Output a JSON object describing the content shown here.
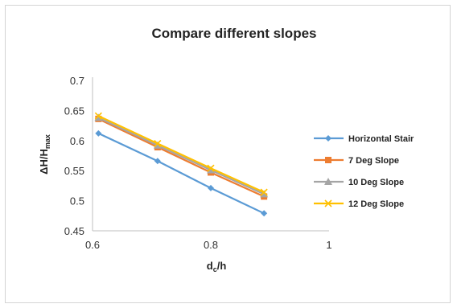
{
  "chart_data": {
    "type": "line",
    "title": "Compare different slopes",
    "xlabel": {
      "main": "d",
      "sub": "c",
      "suffix": "/h"
    },
    "ylabel": {
      "main": "ΔH/H",
      "sub": "max"
    },
    "xlim": [
      0.6,
      1.0
    ],
    "ylim": [
      0.45,
      0.7
    ],
    "xticks": [
      "0.6",
      "0.8",
      "1"
    ],
    "xtick_values": [
      0.6,
      0.8,
      1.0
    ],
    "yticks": [
      "0.45",
      "0.5",
      "0.55",
      "0.6",
      "0.65",
      "0.7"
    ],
    "ytick_values": [
      0.45,
      0.5,
      0.55,
      0.6,
      0.65,
      0.7
    ],
    "grid": false,
    "legend_position": "right",
    "x": [
      0.61,
      0.71,
      0.8,
      0.89
    ],
    "series": [
      {
        "name": "Horizontal Stair",
        "values": [
          0.612,
          0.566,
          0.521,
          0.479
        ],
        "color": "#5b9bd5",
        "marker": "diamond"
      },
      {
        "name": "7 Deg Slope",
        "values": [
          0.636,
          0.589,
          0.547,
          0.507
        ],
        "color": "#ed7d31",
        "marker": "square"
      },
      {
        "name": "10 Deg Slope",
        "values": [
          0.638,
          0.592,
          0.551,
          0.511
        ],
        "color": "#a5a5a5",
        "marker": "triangle"
      },
      {
        "name": "12 Deg Slope",
        "values": [
          0.641,
          0.595,
          0.554,
          0.514
        ],
        "color": "#ffc000",
        "marker": "x"
      }
    ]
  }
}
